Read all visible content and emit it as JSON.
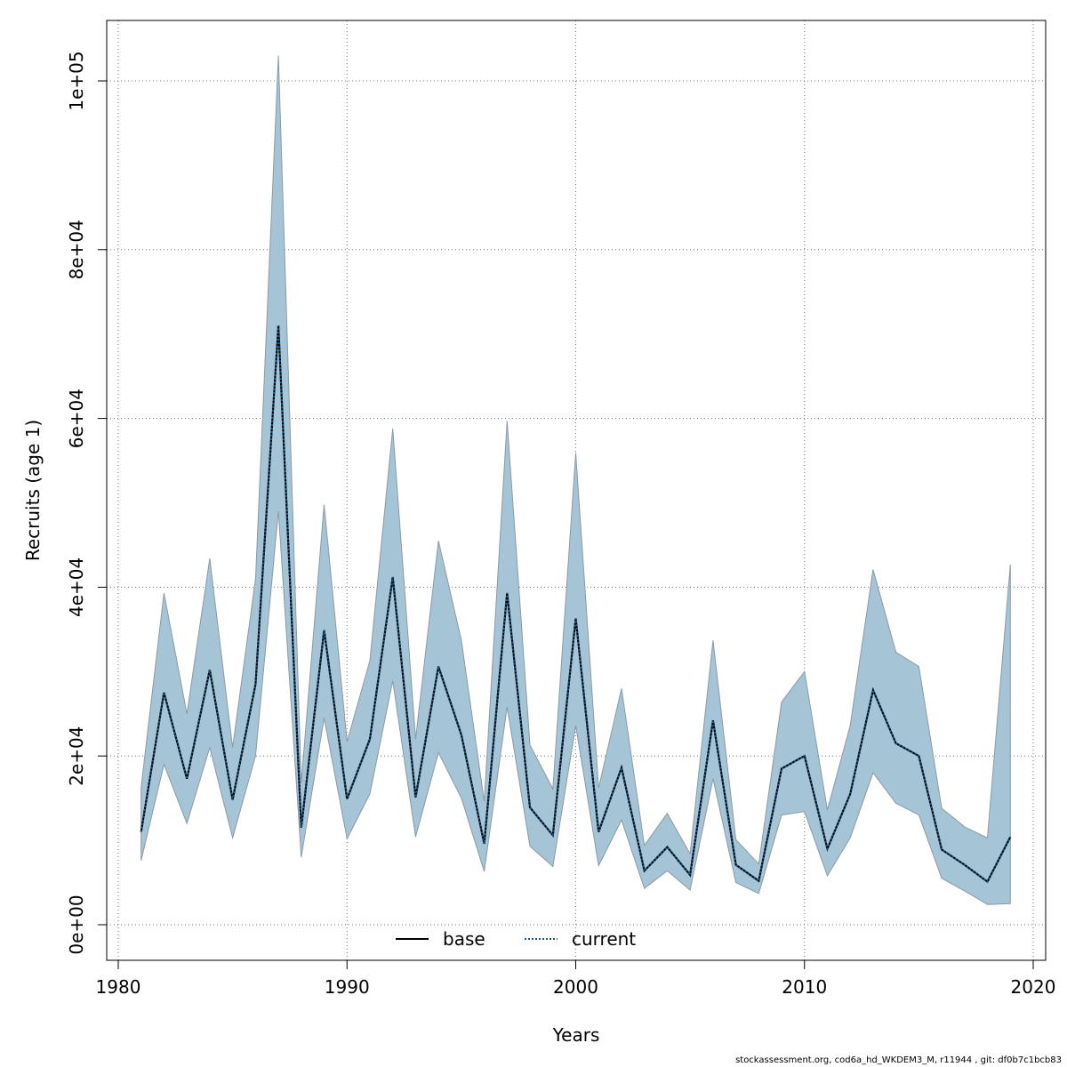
{
  "footer": "stockassessment.org, cod6a_hd_WKDEM3_M, r11944 , git: df0b7c1bcb83",
  "chart_data": {
    "type": "line",
    "xlabel": "Years",
    "ylabel": "Recruits (age 1)",
    "xlim": [
      1980,
      2020
    ],
    "ylim": [
      0,
      105000
    ],
    "x_ticks": [
      1980,
      1990,
      2000,
      2010,
      2020
    ],
    "x_tick_labels": [
      "1980",
      "1990",
      "2000",
      "2010",
      "2020"
    ],
    "y_ticks": [
      0,
      20000,
      40000,
      60000,
      80000,
      100000
    ],
    "y_tick_labels": [
      "0e+00",
      "2e+04",
      "4e+04",
      "6e+04",
      "8e+04",
      "1e+05"
    ],
    "grid": true,
    "legend_position": "bottom",
    "colors": {
      "band": "#a5c4d5",
      "band_edge": "#8a9aa6",
      "base": "#000000",
      "current": "#1c5a8a"
    },
    "x": [
      1981,
      1982,
      1983,
      1984,
      1985,
      1986,
      1987,
      1988,
      1989,
      1990,
      1991,
      1992,
      1993,
      1994,
      1995,
      1996,
      1997,
      1998,
      1999,
      2000,
      2001,
      2002,
      2003,
      2004,
      2005,
      2006,
      2007,
      2008,
      2009,
      2010,
      2011,
      2012,
      2013,
      2014,
      2015,
      2016,
      2017,
      2018,
      2019
    ],
    "series": [
      {
        "name": "base",
        "style": "solid",
        "values": [
          11000,
          27500,
          17300,
          30200,
          14800,
          28500,
          71000,
          11500,
          34900,
          14900,
          22000,
          41200,
          15100,
          30600,
          22500,
          9600,
          39300,
          13900,
          10600,
          36300,
          11000,
          18600,
          6400,
          9200,
          5900,
          24200,
          7100,
          5200,
          18500,
          20000,
          9000,
          15500,
          27800,
          21500,
          20000,
          8900,
          7100,
          5100,
          10400
        ]
      },
      {
        "name": "current",
        "style": "dotted",
        "values": [
          11000,
          27500,
          17300,
          30200,
          14800,
          28500,
          71000,
          11500,
          34900,
          14900,
          22000,
          41200,
          15100,
          30600,
          22500,
          9600,
          39300,
          13900,
          10600,
          36300,
          11000,
          18600,
          6400,
          9200,
          5900,
          24200,
          7100,
          5200,
          18500,
          20000,
          9000,
          15500,
          27800,
          21500,
          20000,
          8900,
          7100,
          5100,
          10400
        ]
      }
    ],
    "ci_lower": [
      7600,
      19000,
      12000,
      21000,
      10300,
      20000,
      49000,
      8000,
      24500,
      10200,
      15500,
      28900,
      10400,
      20400,
      15000,
      6300,
      25800,
      9300,
      6900,
      23600,
      7000,
      12400,
      4300,
      6400,
      4100,
      17300,
      5000,
      3700,
      13000,
      13400,
      5800,
      10300,
      18000,
      14400,
      13000,
      5500,
      4000,
      2400,
      2500
    ],
    "ci_upper": [
      16300,
      39300,
      25000,
      43400,
      21000,
      41000,
      103000,
      16800,
      49800,
      21700,
      31300,
      58800,
      22000,
      45500,
      33700,
      14600,
      59700,
      21300,
      16100,
      55900,
      16200,
      28000,
      9400,
      13200,
      8400,
      33700,
      10100,
      7200,
      26400,
      30000,
      13600,
      23600,
      42100,
      32300,
      30600,
      13800,
      11600,
      10300,
      42700
    ]
  }
}
